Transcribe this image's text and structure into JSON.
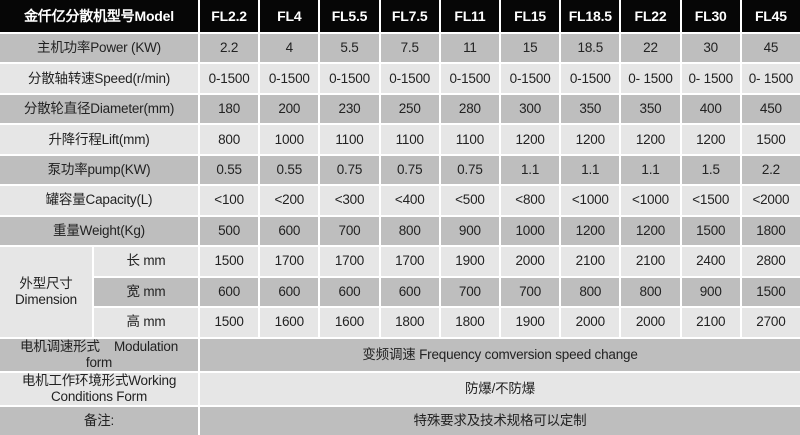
{
  "header": {
    "label": "金仟亿分散机型号Model",
    "models": [
      "FL2.2",
      "FL4",
      "FL5.5",
      "FL7.5",
      "FL11",
      "FL15",
      "FL18.5",
      "FL22",
      "FL30",
      "FL45"
    ]
  },
  "rows": [
    {
      "label": "主机功率Power (KW)",
      "values": [
        "2.2",
        "4",
        "5.5",
        "7.5",
        "11",
        "15",
        "18.5",
        "22",
        "30",
        "45"
      ]
    },
    {
      "label": "分散轴转速Speed(r/min)",
      "values": [
        "0-1500",
        "0-1500",
        "0-1500",
        "0-1500",
        "0-1500",
        "0-1500",
        "0-1500",
        "0- 1500",
        "0- 1500",
        "0- 1500"
      ]
    },
    {
      "label": "分散轮直径Diameter(mm)",
      "values": [
        "180",
        "200",
        "230",
        "250",
        "280",
        "300",
        "350",
        "350",
        "400",
        "450"
      ]
    },
    {
      "label": "升降行程Lift(mm)",
      "values": [
        "800",
        "1000",
        "1100",
        "1100",
        "1100",
        "1200",
        "1200",
        "1200",
        "1200",
        "1500"
      ]
    },
    {
      "label": "泵功率pump(KW)",
      "values": [
        "0.55",
        "0.55",
        "0.75",
        "0.75",
        "0.75",
        "1.1",
        "1.1",
        "1.1",
        "1.5",
        "2.2"
      ]
    },
    {
      "label": "罐容量Capacity(L)",
      "values": [
        "<100",
        "<200",
        "<300",
        "<400",
        "<500",
        "<800",
        "<1000",
        "<1000",
        "<1500",
        "<2000"
      ]
    },
    {
      "label": "重量Weight(Kg)",
      "values": [
        "500",
        "600",
        "700",
        "800",
        "900",
        "1000",
        "1200",
        "1200",
        "1500",
        "1800"
      ]
    }
  ],
  "dimension": {
    "label": "外型尺寸 Dimension",
    "subrows": [
      {
        "label": "长 mm",
        "values": [
          "1500",
          "1700",
          "1700",
          "1700",
          "1900",
          "2000",
          "2100",
          "2100",
          "2400",
          "2800"
        ]
      },
      {
        "label": "宽 mm",
        "values": [
          "600",
          "600",
          "600",
          "600",
          "700",
          "700",
          "800",
          "800",
          "900",
          "1500"
        ]
      },
      {
        "label": "高 mm",
        "values": [
          "1500",
          "1600",
          "1600",
          "1800",
          "1800",
          "1900",
          "2000",
          "2000",
          "2100",
          "2700"
        ]
      }
    ]
  },
  "footer": [
    {
      "label": "电机调速形式    Modulation form",
      "text": "变频调速 Frequency comversion speed change"
    },
    {
      "label": "电机工作环境形式Working Conditions Form",
      "text": "防爆/不防爆"
    },
    {
      "label": "备注:",
      "text": "特殊要求及技术规格可以定制"
    }
  ],
  "colors": {
    "header": "#060606",
    "dark_row": "#bebebe",
    "light_row": "#e6e6e6"
  }
}
